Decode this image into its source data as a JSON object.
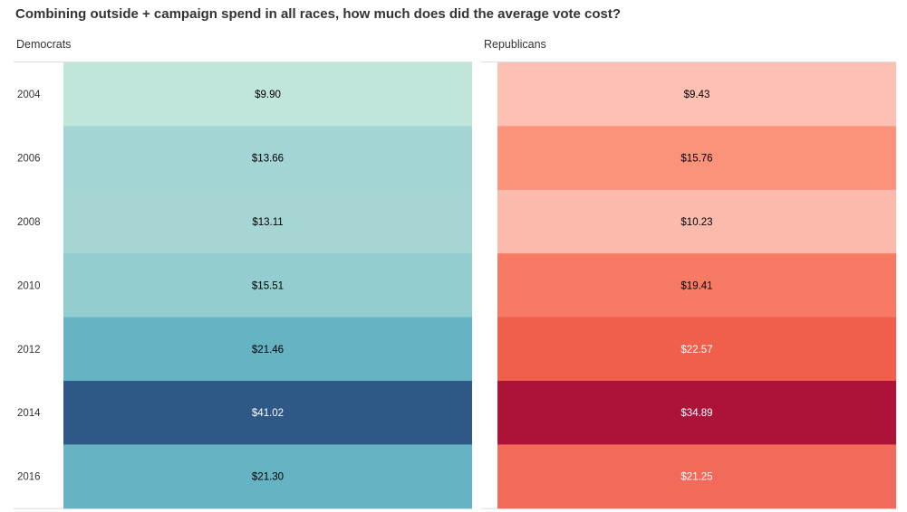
{
  "title": "Combining outside + campaign spend in all races, how much does did the average vote cost?",
  "chart_data": {
    "type": "heatmap",
    "title": "Combining outside + campaign spend in all races, how much does did the average vote cost?",
    "categories": [
      "2004",
      "2006",
      "2008",
      "2010",
      "2012",
      "2014",
      "2016"
    ],
    "series": [
      {
        "name": "Democrats",
        "values": [
          9.9,
          13.66,
          13.11,
          15.51,
          21.46,
          41.02,
          21.3
        ],
        "labels": [
          "$9.90",
          "$13.66",
          "$13.11",
          "$15.51",
          "$21.46",
          "$41.02",
          "$21.30"
        ],
        "colors": [
          "#c0e5da",
          "#a2d5d3",
          "#a5d6d3",
          "#93cdcf",
          "#66b3c4",
          "#2e5986",
          "#66b3c4"
        ],
        "label_colors": [
          "#000000",
          "#000000",
          "#000000",
          "#000000",
          "#000000",
          "#ffffff",
          "#000000"
        ]
      },
      {
        "name": "Republicans",
        "values": [
          9.43,
          15.76,
          10.23,
          19.41,
          22.57,
          34.89,
          21.25
        ],
        "labels": [
          "$9.43",
          "$15.76",
          "$10.23",
          "$19.41",
          "$22.57",
          "$34.89",
          "$21.25"
        ],
        "colors": [
          "#fdc0b3",
          "#fb937a",
          "#fcbaad",
          "#f77a65",
          "#ef5f4c",
          "#ad1238",
          "#f26b5a"
        ],
        "label_colors": [
          "#000000",
          "#000000",
          "#000000",
          "#000000",
          "#ffffff",
          "#ffffff",
          "#ffffff"
        ]
      }
    ]
  }
}
